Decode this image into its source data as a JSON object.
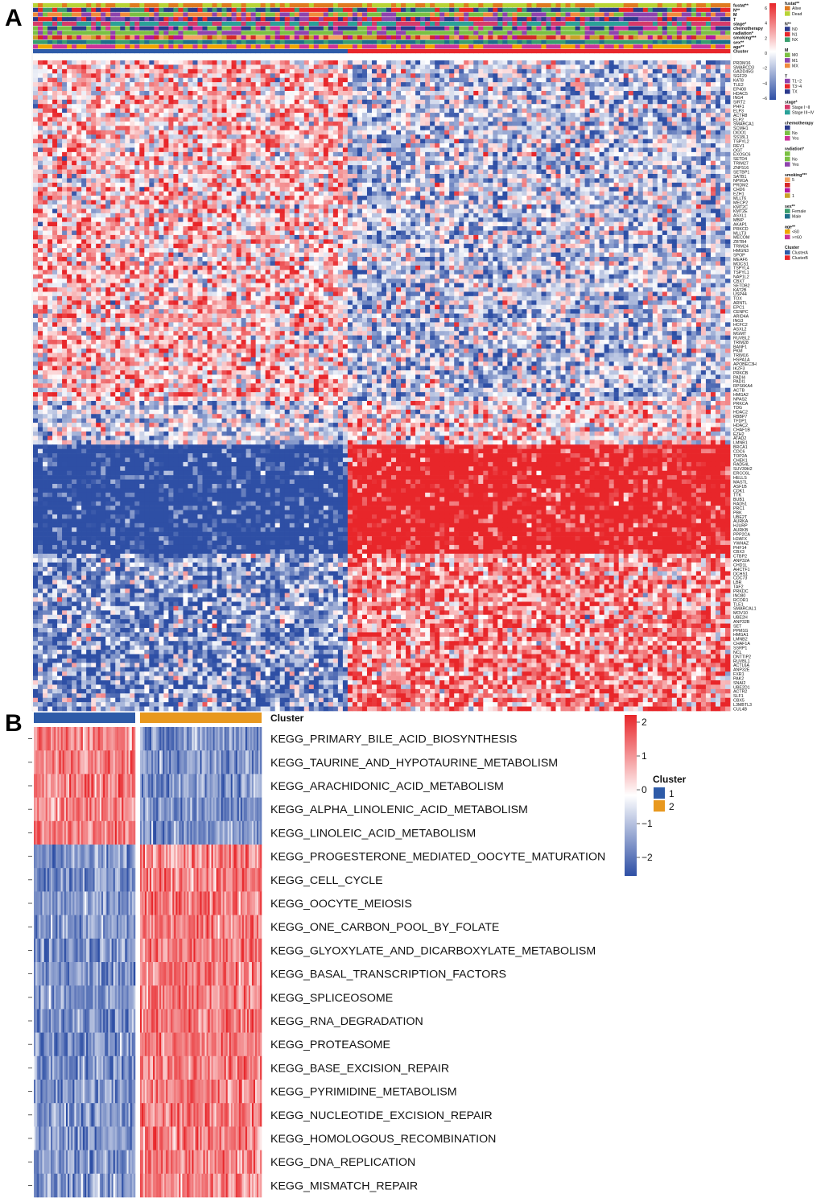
{
  "figure": {
    "panel_a_letter": "A",
    "panel_b_letter": "B"
  },
  "colors": {
    "high": "#e8262a",
    "mid": "#ffffff",
    "low": "#2e4fa5"
  },
  "chart_data": [
    {
      "type": "heatmap",
      "panel": "A",
      "title": "",
      "top_annotation_rows": [
        "fustat**",
        "N**",
        "M",
        "T",
        "stage*",
        "chemotherapy",
        "radiation*",
        "smoking***",
        "sex**",
        "age**",
        "Cluster"
      ],
      "genes": [
        "PRDM16",
        "SMARCD3",
        "GADD45G",
        "SGF29",
        "KAT8",
        "TLE2",
        "EP400",
        "HDAC5",
        "ING4",
        "SIRT2",
        "PHF1",
        "ELP3",
        "ACTR8",
        "ELP2",
        "SMARCA1",
        "SCMH1",
        "DIDO1",
        "SS18L1",
        "TSPYL2",
        "REV1",
        "OGT",
        "EXOSC6",
        "SETD4",
        "TRIM27",
        "ZNF516",
        "SETBP1",
        "SATB1",
        "NPM1A",
        "PRDM2",
        "CHD6",
        "EZH1",
        "MLLT6",
        "MECP2",
        "KMT2C",
        "KMT2E",
        "ASXL1",
        "MBIP",
        "AKAP1",
        "PRKCD",
        "MLLT3",
        "MECOM",
        "ZBTB4",
        "TRIM24",
        "HMGN3",
        "SPOP",
        "MEAF6",
        "MOCS1",
        "TSPYL4",
        "TSPYL1",
        "NAP1L2",
        "CBX7",
        "SETDB2",
        "KAT2B",
        "USP44",
        "TOX",
        "ARNTL",
        "EPC1",
        "CENPC",
        "ARID4A",
        "ING3",
        "HCFC2",
        "ASXL2",
        "MGMT",
        "RUVBL2",
        "TRIM28",
        "BANF1",
        "PKM",
        "TRIM16",
        "HSPA1A",
        "APOBEC3H",
        "IKZF3",
        "PRKCB",
        "PADI4",
        "PADI1",
        "RPS6KA4",
        "ACTB",
        "HMGA2",
        "NPAS2",
        "PRKCA",
        "TDG",
        "HDAC2",
        "RBBP7",
        "TFDP1",
        "HDAC2",
        "CHAF1B",
        "EZH2",
        "ATAD2",
        "LMNB1",
        "BRCA1",
        "CDC6",
        "TOP2A",
        "CHEK1",
        "RAD54L",
        "SUV39H2",
        "ERCC6L",
        "HELLS",
        "MASTL",
        "ASF1B",
        "CDK1",
        "TTK",
        "BUB1",
        "RAD51",
        "PRC1",
        "PBK",
        "UBE2T",
        "AURKA",
        "HJURP",
        "AURKB",
        "PPP2CA",
        "H2AFX",
        "YWHAZ",
        "PHF14",
        "CBX3",
        "CTBP2",
        "ANP32A",
        "CHD1L",
        "AHCTF1",
        "DCHS1",
        "CDC73",
        "LBR",
        "TAF2",
        "PRKDC",
        "INO80",
        "RCOR1",
        "TLE1",
        "SMARCAL1",
        "MOV10",
        "UBE2H",
        "ANP32B",
        "SET",
        "PPM1G",
        "HMGA1",
        "LMNB2",
        "CHAF1A",
        "SSRP1",
        "NCL",
        "DNTTIP2",
        "RUVBL1",
        "ACTL6A",
        "ANP32E",
        "FXR1",
        "PAK2",
        "SNAI2",
        "UBE2D1",
        "ACTR2",
        "SLF1",
        "CBX5",
        "L3MBTL3",
        "CUL4B"
      ],
      "legend": {
        "scale_ticks": [
          "6",
          "4",
          "2",
          "0",
          "−2",
          "−4",
          "−6"
        ],
        "groups": [
          {
            "title": "fustat**",
            "items": [
              {
                "label": "Alive",
                "color": "#e07a1f"
              },
              {
                "label": "Dead",
                "color": "#b8d435"
              }
            ]
          },
          {
            "title": "N**",
            "items": [
              {
                "label": "N0",
                "color": "#2b3a8c"
              },
              {
                "label": "N1",
                "color": "#e8262a"
              },
              {
                "label": "NX",
                "color": "#3a9e6e"
              }
            ]
          },
          {
            "title": "M",
            "items": [
              {
                "label": "M0",
                "color": "#7bc043"
              },
              {
                "label": "M1",
                "color": "#8e44ad"
              },
              {
                "label": "MX",
                "color": "#f08a3c"
              }
            ]
          },
          {
            "title": "T",
            "items": [
              {
                "label": "T1~2",
                "color": "#8e44ad"
              },
              {
                "label": "T3~4",
                "color": "#e8262a"
              },
              {
                "label": "TX",
                "color": "#2b3a8c"
              }
            ]
          },
          {
            "title": "stage*",
            "items": [
              {
                "label": "Stage I~II",
                "color": "#d63a6a"
              },
              {
                "label": "Stage III~IV",
                "color": "#2aa198"
              }
            ]
          },
          {
            "title": "chemotherapy",
            "items": [
              {
                "label": "",
                "color": "#2b3a8c"
              },
              {
                "label": "No",
                "color": "#7bc043"
              },
              {
                "label": "Yes",
                "color": "#cc3399"
              }
            ]
          },
          {
            "title": "radiation*",
            "items": [
              {
                "label": "",
                "color": "#7bc043"
              },
              {
                "label": "No",
                "color": "#7bc043"
              },
              {
                "label": "Yes",
                "color": "#8e44ad"
              }
            ]
          },
          {
            "title": "smoking***",
            "items": [
              {
                "label": "5",
                "color": "#f4a261"
              },
              {
                "label": "",
                "color": "#d62828"
              },
              {
                "label": "",
                "color": "#b5179e"
              },
              {
                "label": "1",
                "color": "#c9a227"
              }
            ]
          },
          {
            "title": "sex**",
            "items": [
              {
                "label": "Female",
                "color": "#3a9e6e"
              },
              {
                "label": "Male",
                "color": "#1f6f8b"
              }
            ]
          },
          {
            "title": "age**",
            "items": [
              {
                "label": "<60",
                "color": "#f0a500"
              },
              {
                "label": ">=60",
                "color": "#cc3399"
              }
            ]
          },
          {
            "title": "Cluster",
            "items": [
              {
                "label": "ClusterA",
                "color": "#2e5ba8"
              },
              {
                "label": "ClusterB",
                "color": "#e8262a"
              }
            ]
          }
        ]
      }
    },
    {
      "type": "heatmap",
      "panel": "B",
      "title": "",
      "annotation_label": "Cluster",
      "pathways": [
        "KEGG_PRIMARY_BILE_ACID_BIOSYNTHESIS",
        "KEGG_TAURINE_AND_HYPOTAURINE_METABOLISM",
        "KEGG_ARACHIDONIC_ACID_METABOLISM",
        "KEGG_ALPHA_LINOLENIC_ACID_METABOLISM",
        "KEGG_LINOLEIC_ACID_METABOLISM",
        "KEGG_PROGESTERONE_MEDIATED_OOCYTE_MATURATION",
        "KEGG_CELL_CYCLE",
        "KEGG_OOCYTE_MEIOSIS",
        "KEGG_ONE_CARBON_POOL_BY_FOLATE",
        "KEGG_GLYOXYLATE_AND_DICARBOXYLATE_METABOLISM",
        "KEGG_BASAL_TRANSCRIPTION_FACTORS",
        "KEGG_SPLICEOSOME",
        "KEGG_RNA_DEGRADATION",
        "KEGG_PROTEASOME",
        "KEGG_BASE_EXCISION_REPAIR",
        "KEGG_PYRIMIDINE_METABOLISM",
        "KEGG_NUCLEOTIDE_EXCISION_REPAIR",
        "KEGG_HOMOLOGOUS_RECOMBINATION",
        "KEGG_DNA_REPLICATION",
        "KEGG_MISMATCH_REPAIR"
      ],
      "cluster1_mean": [
        1,
        1,
        1,
        1,
        1,
        -1,
        -1,
        -1,
        -1,
        -1,
        -1,
        -1,
        -1,
        -1,
        -1,
        -1,
        -1,
        -1,
        -1,
        -1
      ],
      "cluster2_mean": [
        -1,
        -1,
        -1,
        -1,
        -1,
        1,
        1,
        1,
        1,
        1,
        1,
        1,
        1,
        1,
        1,
        1,
        1,
        1,
        1,
        1
      ],
      "colorbar_ticks": [
        "2",
        "1",
        "0",
        "−1",
        "−2"
      ],
      "legend": {
        "title": "Cluster",
        "items": [
          {
            "label": "1",
            "color": "#2e5ba8"
          },
          {
            "label": "2",
            "color": "#e8981e"
          }
        ]
      }
    }
  ]
}
